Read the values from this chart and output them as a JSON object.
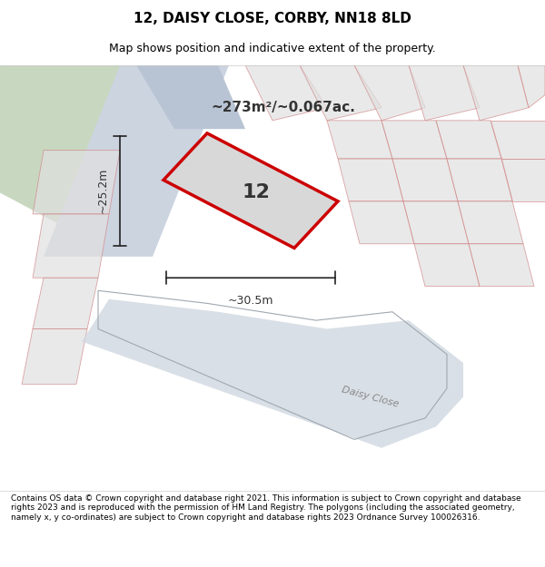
{
  "title_line1": "12, DAISY CLOSE, CORBY, NN18 8LD",
  "title_line2": "Map shows position and indicative extent of the property.",
  "area_text": "~273m²/~0.067ac.",
  "dim_width": "~30.5m",
  "dim_height": "~25.2m",
  "plot_number": "12",
  "footer_text": "Contains OS data © Crown copyright and database right 2021. This information is subject to Crown copyright and database rights 2023 and is reproduced with the permission of HM Land Registry. The polygons (including the associated geometry, namely x, y co-ordinates) are subject to Crown copyright and database rights 2023 Ordnance Survey 100026316.",
  "bg_map_color": "#e8e8e8",
  "green_area_color": "#c8d8c0",
  "road_color": "#ccd4e0",
  "plot_fill_color": "#d8d8d8",
  "property_outline_color": "#cc0000",
  "dim_line_color": "#222222",
  "road_label": "Daisy Close",
  "title_bg_color": "#ffffff",
  "footer_bg_color": "#ffffff"
}
